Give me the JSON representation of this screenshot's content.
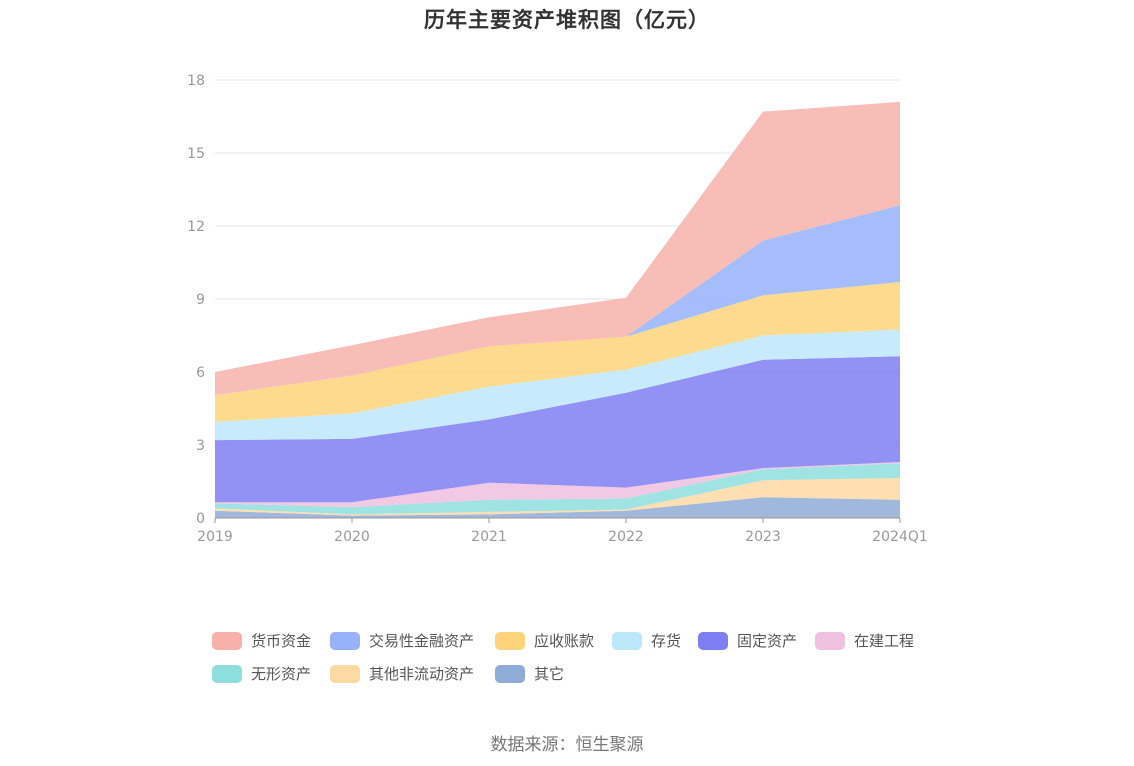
{
  "chart_data": {
    "type": "area",
    "stacked": true,
    "title": "历年主要资产堆积图（亿元）",
    "categories": [
      "2019",
      "2020",
      "2021",
      "2022",
      "2023",
      "2024Q1"
    ],
    "ylim": [
      0,
      18
    ],
    "yticks": [
      0,
      3,
      6,
      9,
      12,
      15,
      18
    ],
    "grid": true,
    "legend_position": "bottom",
    "series": [
      {
        "name": "其它",
        "color": "#8eacd6",
        "values": [
          0.3,
          0.1,
          0.15,
          0.3,
          0.85,
          0.75
        ]
      },
      {
        "name": "其他非流动资产",
        "color": "#fdd9a3",
        "values": [
          0.1,
          0.05,
          0.1,
          0.05,
          0.7,
          0.9
        ]
      },
      {
        "name": "无形资产",
        "color": "#8fdede",
        "values": [
          0.2,
          0.3,
          0.5,
          0.45,
          0.45,
          0.6
        ]
      },
      {
        "name": "在建工程",
        "color": "#f0c0e0",
        "values": [
          0.05,
          0.2,
          0.7,
          0.45,
          0.05,
          0.05
        ]
      },
      {
        "name": "固定资产",
        "color": "#7e7ff2",
        "values": [
          2.55,
          2.6,
          2.6,
          3.9,
          4.45,
          4.35
        ]
      },
      {
        "name": "存货",
        "color": "#bde7fb",
        "values": [
          0.75,
          1.05,
          1.35,
          0.95,
          1.0,
          1.1
        ]
      },
      {
        "name": "应收账款",
        "color": "#fdd47a",
        "values": [
          1.1,
          1.55,
          1.65,
          1.35,
          1.65,
          1.95
        ]
      },
      {
        "name": "交易性金融资产",
        "color": "#97b1fa",
        "values": [
          0.0,
          0.0,
          0.0,
          0.0,
          2.25,
          3.15
        ]
      },
      {
        "name": "货币资金",
        "color": "#f8b1aa",
        "values": [
          0.95,
          1.25,
          1.2,
          1.6,
          5.3,
          4.25
        ]
      }
    ],
    "legend_order": [
      "货币资金",
      "交易性金融资产",
      "应收账款",
      "存货",
      "固定资产",
      "在建工程",
      "无形资产",
      "其他非流动资产",
      "其它"
    ],
    "source": "数据来源：恒生聚源"
  }
}
